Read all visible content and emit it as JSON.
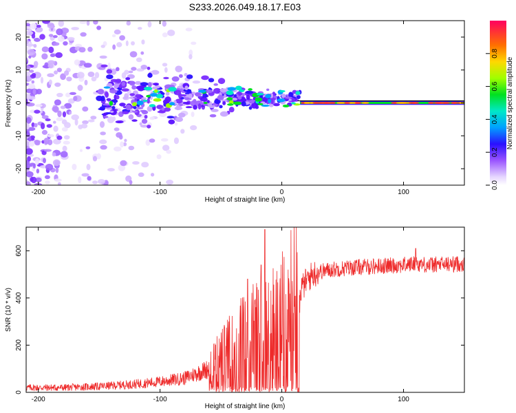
{
  "title": "S233.2026.049.18.17.E03",
  "chart_data": [
    {
      "type": "heatmap",
      "xlabel": "Height of straight line (km)",
      "ylabel": "Frequency (Hz)",
      "xlim": [
        -210,
        150
      ],
      "ylim": [
        -25,
        25
      ],
      "xticks": [
        -200,
        -100,
        0,
        100
      ],
      "xtick_labels": [
        "-200",
        "-100",
        "0",
        "100"
      ],
      "yticks": [
        20,
        10,
        0,
        -10,
        -20
      ],
      "ytick_labels": [
        "20",
        "10",
        "0",
        "-10",
        "-20"
      ],
      "colorbar": {
        "label": "Normalized spectral amplitude",
        "range": [
          0,
          1
        ],
        "ticks": [
          0.0,
          0.2,
          0.4,
          0.6,
          0.8
        ],
        "tick_labels": [
          "0.0",
          "0.2",
          "0.4",
          "0.6",
          "0.8"
        ]
      },
      "features": [
        {
          "x_range": [
            -210,
            -150
          ],
          "description": "broadband noise",
          "amplitude": 0.15
        },
        {
          "x_range": [
            -150,
            15
          ],
          "description": "scintillating carrier with blobs near 0-5 Hz",
          "amplitude": 0.4
        },
        {
          "x_range": [
            15,
            150
          ],
          "description": "steady carrier line at 0 Hz",
          "amplitude": 0.95
        }
      ]
    },
    {
      "type": "line",
      "xlabel": "Height of straight line (km)",
      "ylabel": "SNR (10 * v/v)",
      "xlim": [
        -210,
        150
      ],
      "ylim": [
        0,
        700
      ],
      "xticks": [
        -200,
        -100,
        0,
        100
      ],
      "xtick_labels": [
        "-200",
        "-100",
        "0",
        "100"
      ],
      "yticks": [
        0,
        200,
        400,
        600
      ],
      "ytick_labels": [
        "0",
        "200",
        "400",
        "600"
      ],
      "series": [
        {
          "name": "SNR",
          "color": "#ee2a2a",
          "envelope_x": [
            -210,
            -180,
            -150,
            -120,
            -100,
            -80,
            -60,
            -50,
            -40,
            -30,
            -20,
            -15,
            -10,
            -5,
            0,
            5,
            10,
            15,
            20,
            25,
            30,
            40,
            60,
            80,
            100,
            110,
            120,
            150
          ],
          "envelope_y": [
            20,
            20,
            25,
            35,
            45,
            60,
            100,
            140,
            190,
            240,
            250,
            260,
            270,
            290,
            310,
            350,
            390,
            430,
            470,
            500,
            510,
            520,
            530,
            535,
            540,
            545,
            540,
            545
          ],
          "spikes": [
            {
              "x": -14,
              "y": 690
            },
            {
              "x": -28,
              "y": 480
            },
            {
              "x": -17,
              "y": 540
            },
            {
              "x": 110,
              "y": 610
            }
          ]
        }
      ]
    }
  ]
}
